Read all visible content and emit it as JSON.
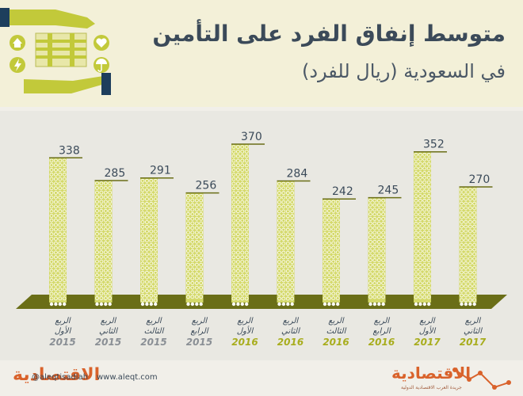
{
  "header": {
    "title": "متوسط إنفاق الفرد على التأمين",
    "subtitle": "في السعودية (ريال للفرد)"
  },
  "chart_data": {
    "type": "bar",
    "title": "متوسط إنفاق الفرد على التأمين",
    "subtitle": "في السعودية (ريال للفرد)",
    "categories": [
      {
        "quarter": "الربع الأول",
        "year": "2015"
      },
      {
        "quarter": "الربع الثاني",
        "year": "2015"
      },
      {
        "quarter": "الربع الثالث",
        "year": "2015"
      },
      {
        "quarter": "الربع الرابع",
        "year": "2015"
      },
      {
        "quarter": "الربع الأول",
        "year": "2016"
      },
      {
        "quarter": "الربع الثاني",
        "year": "2016"
      },
      {
        "quarter": "الربع الثالث",
        "year": "2016"
      },
      {
        "quarter": "الربع الرابع",
        "year": "2016"
      },
      {
        "quarter": "الربع الأول",
        "year": "2017"
      },
      {
        "quarter": "الربع الثاني",
        "year": "2017"
      }
    ],
    "values": [
      338,
      285,
      291,
      256,
      370,
      284,
      242,
      245,
      352,
      270
    ],
    "ylim": [
      0,
      370
    ],
    "grid": false,
    "colors": {
      "bar": "#d4d96a",
      "bar_dot": "#ffffff",
      "baseline": "#6a6e17",
      "year_2015": "#8a8f95",
      "year_2016": "#a8ad1e",
      "year_2017": "#a8ad1e"
    }
  },
  "icons": [
    "house-icon",
    "heart-icon",
    "lightning-icon",
    "umbrella-icon",
    "money-stack-icon",
    "hands-icon"
  ],
  "footer": {
    "logo_left": "الاقتصادية",
    "twitter": "@aleqtisadiah",
    "website": "www.aleqt.com",
    "logo_right": "الاقتصادية",
    "logo_right_tagline": "جريدة العرب الاقتصادية الدولية"
  }
}
